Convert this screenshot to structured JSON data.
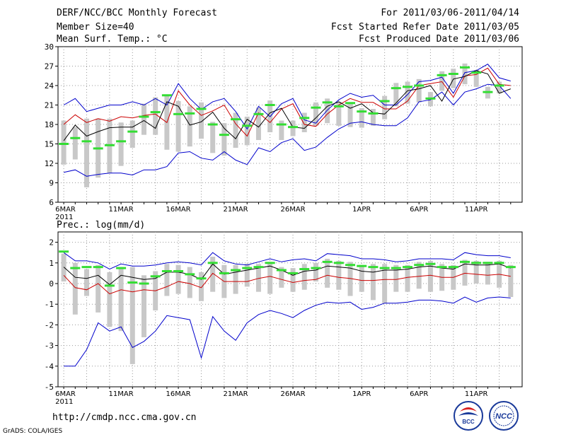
{
  "header": {
    "title": "DERF/NCC/BCC Monthly Forecast",
    "member_size": "Member Size=40",
    "variable": "Mean Surf. Temp.: °C",
    "forecast_period": "For 2011/03/06-2011/04/14",
    "refer_date": "Fcst Started Refer Date 2011/03/05",
    "produced_date": "Fcst Produced Date 2011/03/06"
  },
  "footer": {
    "url": "http://cmdp.ncc.cma.gov.cn",
    "credit": "GrADS: COLA/IGES",
    "logo_bcc_text": "BCC",
    "logo_ncc_text": "NCC"
  },
  "colors": {
    "ensemble_mean": "#000000",
    "red_line": "#cc0000",
    "blue_bounds": "#0000cc",
    "green_marker": "#33dd33",
    "gray_bar": "#c8c8c8",
    "grid": "#999999"
  },
  "chart_data": [
    {
      "type": "line",
      "title": "Mean Surf. Temp.: °C",
      "ylim": [
        6,
        30
      ],
      "yticks": [
        6,
        9,
        12,
        15,
        18,
        21,
        24,
        27,
        30
      ],
      "x_tick_labels": [
        {
          "day": 1,
          "label": "6MAR",
          "sub": "2011"
        },
        {
          "day": 6,
          "label": "11MAR"
        },
        {
          "day": 11,
          "label": "16MAR"
        },
        {
          "day": 16,
          "label": "21MAR"
        },
        {
          "day": 21,
          "label": "26MAR"
        },
        {
          "day": 27,
          "label": "1APR"
        },
        {
          "day": 32,
          "label": "6APR"
        },
        {
          "day": 37,
          "label": "11APR"
        }
      ],
      "days": [
        1,
        2,
        3,
        4,
        5,
        6,
        7,
        8,
        9,
        10,
        11,
        12,
        13,
        14,
        15,
        16,
        17,
        18,
        19,
        20,
        21,
        22,
        23,
        24,
        25,
        26,
        27,
        28,
        29,
        30,
        31,
        32,
        33,
        34,
        35,
        36,
        37,
        38,
        39,
        40
      ],
      "series": [
        {
          "name": "upper_bound",
          "values": [
            21,
            22,
            20,
            20.5,
            21,
            21,
            21.5,
            21,
            22,
            21,
            24.3,
            22,
            20.3,
            21.5,
            22,
            20,
            17.3,
            20.8,
            19.2,
            21.2,
            22,
            18.7,
            18.2,
            20.2,
            21.8,
            22.8,
            22.2,
            22.5,
            21,
            21,
            22.6,
            24.6,
            24.8,
            25.3,
            22.8,
            26,
            26.3,
            27.3,
            25.2,
            24.7
          ]
        },
        {
          "name": "red_line",
          "values": [
            18,
            19.5,
            18.3,
            18.9,
            18.5,
            19.2,
            19,
            19.4,
            19.6,
            18.3,
            23.2,
            21,
            19.4,
            20.1,
            21,
            18.1,
            16.2,
            19.8,
            18.3,
            20.4,
            21.2,
            18,
            17.7,
            19.6,
            21,
            22,
            21.4,
            21.4,
            20.4,
            20.4,
            21.6,
            24,
            24.3,
            24.6,
            22.2,
            25.5,
            25.7,
            26.7,
            24.2,
            24
          ]
        },
        {
          "name": "ensemble_mean",
          "values": [
            15.5,
            17.9,
            16.2,
            16.9,
            17.5,
            17.6,
            17.6,
            18.6,
            17.4,
            21.5,
            20.8,
            17.9,
            18.4,
            19.9,
            17.4,
            15.8,
            18.8,
            17.6,
            19.8,
            20.5,
            17.6,
            17.4,
            19,
            20.8,
            21.5,
            20.5,
            21.2,
            19.8,
            19.6,
            21.3,
            23.2,
            23.5,
            24,
            21.6,
            25,
            25.4,
            26.3,
            25.8,
            22.8,
            23.5
          ]
        },
        {
          "name": "lower_bound",
          "values": [
            10.6,
            11,
            10,
            10.3,
            10.5,
            10.5,
            10.2,
            11,
            11,
            11.5,
            13.6,
            13.8,
            12.8,
            12.5,
            13.8,
            12.5,
            11.8,
            14.4,
            13.8,
            15.2,
            15.8,
            14,
            14.5,
            16,
            17.3,
            18.2,
            18.4,
            18,
            17.8,
            17.8,
            19,
            21.5,
            21.8,
            23,
            21,
            23,
            23.5,
            24.2,
            24,
            22
          ]
        }
      ],
      "green_markers": [
        15,
        15.9,
        15.4,
        14.3,
        14.8,
        15.4,
        16.9,
        19.2,
        19.9,
        22.5,
        19.6,
        19.7,
        20.4,
        18,
        16.4,
        18.8,
        17.8,
        19.6,
        21,
        18,
        17.6,
        19,
        20.6,
        21.4,
        20.8,
        21.3,
        20,
        19.7,
        21.6,
        23.6,
        23.8,
        24,
        22,
        25.6,
        25.8,
        26.8,
        26,
        23,
        24,
        null
      ],
      "gray_bars": [
        [
          11.8,
          18.6
        ],
        [
          12.6,
          17.6
        ],
        [
          8.3,
          18.9
        ],
        [
          9.8,
          18.9
        ],
        [
          10.5,
          18.9
        ],
        [
          11.6,
          18.3
        ],
        [
          14.4,
          18.6
        ],
        [
          16.4,
          21.2
        ],
        [
          16.4,
          22.2
        ],
        [
          14.1,
          22.4
        ],
        [
          13.8,
          21.6
        ],
        [
          14.6,
          20.8
        ],
        [
          15.8,
          21.4
        ],
        [
          13.6,
          18.4
        ],
        [
          13.2,
          18.2
        ],
        [
          14.4,
          19.8
        ],
        [
          14.8,
          19.2
        ],
        [
          15.6,
          20.6
        ],
        [
          16.8,
          21.7
        ],
        [
          15.6,
          18.6
        ],
        [
          16.2,
          18.6
        ],
        [
          16.8,
          19.8
        ],
        [
          17.8,
          21.4
        ],
        [
          18.2,
          22
        ],
        [
          17.8,
          21.5
        ],
        [
          17.6,
          21.2
        ],
        [
          17.5,
          20.5
        ],
        [
          17.8,
          20.4
        ],
        [
          18.8,
          22.4
        ],
        [
          20.8,
          24.4
        ],
        [
          21.2,
          24.6
        ],
        [
          21.4,
          25
        ],
        [
          20.8,
          23
        ],
        [
          23.2,
          26.2
        ],
        [
          23.6,
          26.6
        ],
        [
          24.2,
          27.4
        ],
        [
          23.8,
          26.4
        ],
        [
          22,
          23.8
        ],
        [
          22.8,
          24.6
        ],
        [
          null,
          null
        ]
      ]
    },
    {
      "type": "line",
      "title": "Prec.: log(mm/d)",
      "ylim": [
        -5,
        2.5
      ],
      "yticks": [
        -5,
        -4,
        -3,
        -2,
        -1,
        0,
        1,
        2
      ],
      "x_tick_labels": [
        {
          "day": 1,
          "label": "6MAR",
          "sub": "2011"
        },
        {
          "day": 6,
          "label": "11MAR"
        },
        {
          "day": 11,
          "label": "16MAR"
        },
        {
          "day": 16,
          "label": "21MAR"
        },
        {
          "day": 21,
          "label": "26MAR"
        },
        {
          "day": 27,
          "label": "1APR"
        },
        {
          "day": 32,
          "label": "6APR"
        },
        {
          "day": 37,
          "label": "11APR"
        }
      ],
      "days": [
        1,
        2,
        3,
        4,
        5,
        6,
        7,
        8,
        9,
        10,
        11,
        12,
        13,
        14,
        15,
        16,
        17,
        18,
        19,
        20,
        21,
        22,
        23,
        24,
        25,
        26,
        27,
        28,
        29,
        30,
        31,
        32,
        33,
        34,
        35,
        36,
        37,
        38,
        39,
        40
      ],
      "series": [
        {
          "name": "upper_bound",
          "values": [
            1.5,
            1.1,
            1.1,
            1,
            0.7,
            0.95,
            0.85,
            0.85,
            0.9,
            1,
            1.05,
            1,
            0.9,
            1.5,
            1.1,
            0.95,
            0.9,
            1.05,
            1.2,
            1.05,
            1.15,
            1.2,
            1.1,
            1.45,
            1.4,
            1.35,
            1.2,
            1.2,
            1.15,
            1.05,
            1.1,
            1.2,
            1.2,
            1.2,
            1.15,
            1.5,
            1.4,
            1.35,
            1.35,
            1.25
          ]
        },
        {
          "name": "ensemble_mean",
          "values": [
            0.8,
            0.3,
            0.25,
            0.4,
            -0.05,
            0.4,
            0.3,
            0.2,
            0.25,
            0.55,
            0.55,
            0.45,
            0.2,
            0.95,
            0.45,
            0.55,
            0.65,
            0.75,
            0.85,
            0.65,
            0.4,
            0.6,
            0.65,
            0.85,
            0.8,
            0.75,
            0.6,
            0.55,
            0.65,
            0.65,
            0.7,
            0.8,
            0.85,
            0.75,
            0.7,
            0.95,
            0.9,
            0.9,
            0.95,
            0.75
          ]
        },
        {
          "name": "red_line",
          "values": [
            0.4,
            -0.2,
            -0.3,
            0,
            -0.5,
            -0.3,
            -0.4,
            -0.3,
            -0.35,
            -0.15,
            0.1,
            0,
            -0.2,
            0.5,
            0.1,
            0.1,
            0.1,
            0.25,
            0.35,
            0.2,
            0.05,
            0.15,
            0.2,
            0.4,
            0.3,
            0.25,
            0.15,
            0.15,
            0.2,
            0.2,
            0.3,
            0.35,
            0.4,
            0.3,
            0.3,
            0.5,
            0.45,
            0.4,
            0.45,
            0.35
          ]
        },
        {
          "name": "lower_bound",
          "values": [
            -4,
            -4,
            -3.2,
            -1.9,
            -2.3,
            -2.1,
            -3.1,
            -2.8,
            -2.3,
            -1.55,
            -1.65,
            -1.75,
            -3.6,
            -1.6,
            -2.3,
            -2.75,
            -1.9,
            -1.5,
            -1.3,
            -1.45,
            -1.65,
            -1.3,
            -1.05,
            -0.9,
            -0.95,
            -0.9,
            -1.25,
            -1.15,
            -0.95,
            -0.95,
            -0.9,
            -0.8,
            -0.8,
            -0.85,
            -0.95,
            -0.65,
            -0.9,
            -0.7,
            -0.65,
            -0.7
          ]
        }
      ],
      "green_markers": [
        1.55,
        0.75,
        0.8,
        0.8,
        -0.1,
        0.75,
        0.05,
        0,
        0.35,
        0.6,
        0.6,
        0.45,
        0.25,
        1,
        0.5,
        0.65,
        0.75,
        0.8,
        1,
        0.65,
        0.5,
        0.7,
        0.75,
        1.05,
        1,
        0.9,
        0.85,
        0.8,
        0.75,
        0.75,
        0.8,
        0.9,
        0.95,
        0.8,
        0.8,
        1.05,
        1,
        1,
        1,
        0.8
      ],
      "gray_bars": [
        [
          0.1,
          1.45
        ],
        [
          -1.5,
          1
        ],
        [
          -0.6,
          0.7
        ],
        [
          -1.4,
          0.9
        ],
        [
          -2.1,
          0.55
        ],
        [
          -2.3,
          0.8
        ],
        [
          -3.9,
          0.8
        ],
        [
          -2.6,
          0.4
        ],
        [
          -1.3,
          0.6
        ],
        [
          -0.6,
          0.95
        ],
        [
          -0.5,
          0.9
        ],
        [
          -0.7,
          0.8
        ],
        [
          -0.85,
          0.55
        ],
        [
          -0.4,
          1.3
        ],
        [
          -0.7,
          0.9
        ],
        [
          -0.5,
          0.9
        ],
        [
          -0.15,
          0.95
        ],
        [
          -0.4,
          0.95
        ],
        [
          -0.5,
          1.05
        ],
        [
          -0.2,
          0.8
        ],
        [
          -0.4,
          0.75
        ],
        [
          -0.3,
          0.95
        ],
        [
          0.1,
          1
        ],
        [
          -0.2,
          1.2
        ],
        [
          -0.3,
          1.1
        ],
        [
          -0.6,
          1.05
        ],
        [
          -0.4,
          0.9
        ],
        [
          -0.8,
          0.95
        ],
        [
          -0.95,
          0.95
        ],
        [
          -0.4,
          0.9
        ],
        [
          -0.4,
          0.9
        ],
        [
          -0.25,
          1.05
        ],
        [
          -0.4,
          1.1
        ],
        [
          -0.35,
          0.95
        ],
        [
          -0.3,
          0.9
        ],
        [
          -0.1,
          1.15
        ],
        [
          0,
          1.1
        ],
        [
          -0.05,
          1.05
        ],
        [
          -0.2,
          1.1
        ],
        [
          -0.65,
          0.9
        ]
      ]
    }
  ]
}
